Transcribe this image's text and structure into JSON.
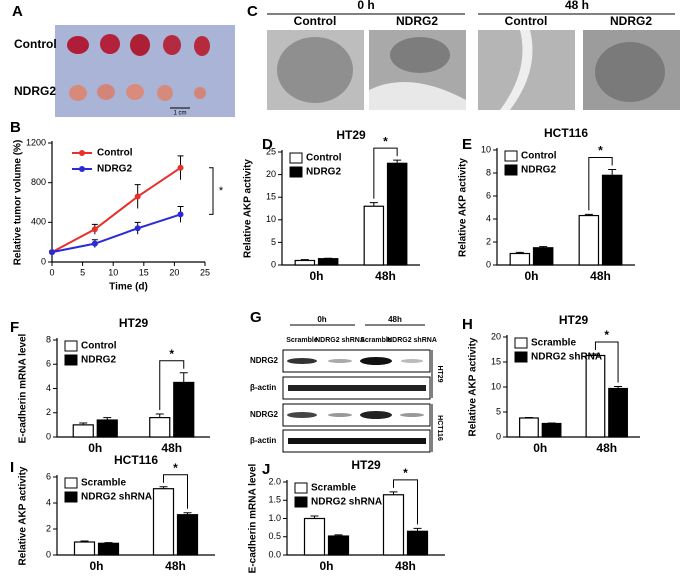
{
  "panel_a": {
    "letter": "A",
    "rows": [
      "Control",
      "NDRG2"
    ],
    "scale": "1 cm"
  },
  "panel_c": {
    "letter": "C",
    "times": [
      "0 h",
      "48 h"
    ],
    "columns": [
      "Control",
      "NDRG2",
      "Control",
      "NDRG2"
    ]
  },
  "panel_g": {
    "letter": "G",
    "times": [
      "0h",
      "48h"
    ],
    "lanes": [
      "Scramble",
      "NDRG2 shRNA",
      "Scramble",
      "NDRG2 shRNA"
    ],
    "rows": [
      "NDRG2",
      "β-actin",
      "NDRG2",
      "β-actin"
    ],
    "cells": [
      "HT29",
      "HCT116"
    ]
  },
  "chart_data": [
    {
      "type": "line",
      "panel": "B",
      "ylabel": "Relative tumor volume (%)",
      "xlabel": "Time (d)",
      "x": [
        0,
        7,
        14,
        21
      ],
      "xlim": [
        0,
        25
      ],
      "xticks": [
        0,
        5,
        10,
        15,
        20,
        25
      ],
      "ylim": [
        0,
        1200
      ],
      "yticks": [
        0,
        400,
        800,
        1200
      ],
      "annotation": "*",
      "series": [
        {
          "name": "Control",
          "color": "#e8302a",
          "values": [
            100,
            330,
            660,
            950
          ],
          "errors": [
            10,
            50,
            120,
            120
          ]
        },
        {
          "name": "NDRG2",
          "color": "#2a2ad8",
          "values": [
            100,
            185,
            340,
            480
          ],
          "errors": [
            10,
            40,
            60,
            80
          ]
        }
      ]
    },
    {
      "type": "bar",
      "panel": "D",
      "title": "HT29",
      "ylabel": "Relative AKP activity",
      "categories": [
        "0h",
        "48h"
      ],
      "ylim": [
        0,
        25
      ],
      "yticks": [
        0,
        5,
        10,
        15,
        20,
        25
      ],
      "annotation": "*",
      "series": [
        {
          "name": "Control",
          "color": "#ffffff",
          "values": [
            1.0,
            13
          ],
          "errors": [
            0.2,
            0.8
          ]
        },
        {
          "name": "NDRG2",
          "color": "#000000",
          "values": [
            1.4,
            22.5
          ],
          "errors": [
            0.1,
            0.7
          ]
        }
      ]
    },
    {
      "type": "bar",
      "panel": "E",
      "title": "HCT116",
      "ylabel": "Relative AKP activity",
      "categories": [
        "0h",
        "48h"
      ],
      "ylim": [
        0,
        10
      ],
      "yticks": [
        0,
        2,
        4,
        6,
        8,
        10
      ],
      "annotation": "*",
      "series": [
        {
          "name": "Control",
          "color": "#ffffff",
          "values": [
            1.0,
            4.3
          ],
          "errors": [
            0.1,
            0.1
          ]
        },
        {
          "name": "NDRG2",
          "color": "#000000",
          "values": [
            1.5,
            7.8
          ],
          "errors": [
            0.1,
            0.5
          ]
        }
      ]
    },
    {
      "type": "bar",
      "panel": "F",
      "title": "HT29",
      "ylabel": "E-cadherin mRNA level",
      "categories": [
        "0h",
        "48h"
      ],
      "ylim": [
        0,
        8
      ],
      "yticks": [
        0,
        2,
        4,
        6,
        8
      ],
      "annotation": "*",
      "series": [
        {
          "name": "Control",
          "color": "#ffffff",
          "values": [
            1.0,
            1.6
          ],
          "errors": [
            0.15,
            0.3
          ]
        },
        {
          "name": "NDRG2",
          "color": "#000000",
          "values": [
            1.4,
            4.5
          ],
          "errors": [
            0.2,
            0.8
          ]
        }
      ]
    },
    {
      "type": "bar",
      "panel": "H",
      "title": "HT29",
      "ylabel": "Relative AKP activity",
      "categories": [
        "0h",
        "48h"
      ],
      "ylim": [
        0,
        20
      ],
      "yticks": [
        0,
        5,
        10,
        15,
        20
      ],
      "annotation": "*",
      "series": [
        {
          "name": "Scramble",
          "color": "#ffffff",
          "values": [
            3.8,
            16.3
          ],
          "errors": [
            0.1,
            0.3
          ]
        },
        {
          "name": "NDRG2 shRNA",
          "color": "#000000",
          "values": [
            2.7,
            9.7
          ],
          "errors": [
            0.1,
            0.4
          ]
        }
      ]
    },
    {
      "type": "bar",
      "panel": "I",
      "title": "HCT116",
      "ylabel": "Relative AKP activity",
      "categories": [
        "0h",
        "48h"
      ],
      "ylim": [
        0,
        6
      ],
      "yticks": [
        0,
        2,
        4,
        6
      ],
      "annotation": "*",
      "series": [
        {
          "name": "Scramble",
          "color": "#ffffff",
          "values": [
            1.0,
            5.1
          ],
          "errors": [
            0.08,
            0.15
          ]
        },
        {
          "name": "NDRG2 shRNA",
          "color": "#000000",
          "values": [
            0.9,
            3.1
          ],
          "errors": [
            0.05,
            0.15
          ]
        }
      ]
    },
    {
      "type": "bar",
      "panel": "J",
      "title": "HT29",
      "ylabel": "E-cadherin mRNA level",
      "categories": [
        "0h",
        "48h"
      ],
      "ylim": [
        0,
        2
      ],
      "yticks": [
        {
          "value": 0,
          "label": "0.0"
        },
        0.5,
        {
          "value": 1,
          "label": "1.0"
        },
        1.5,
        {
          "value": 2,
          "label": "2.0"
        }
      ],
      "annotation": "*",
      "series": [
        {
          "name": "Scramble",
          "color": "#ffffff",
          "values": [
            1.0,
            1.65
          ],
          "errors": [
            0.07,
            0.08
          ]
        },
        {
          "name": "NDRG2 shRNA",
          "color": "#000000",
          "values": [
            0.52,
            0.65
          ],
          "errors": [
            0.03,
            0.08
          ]
        }
      ]
    }
  ]
}
